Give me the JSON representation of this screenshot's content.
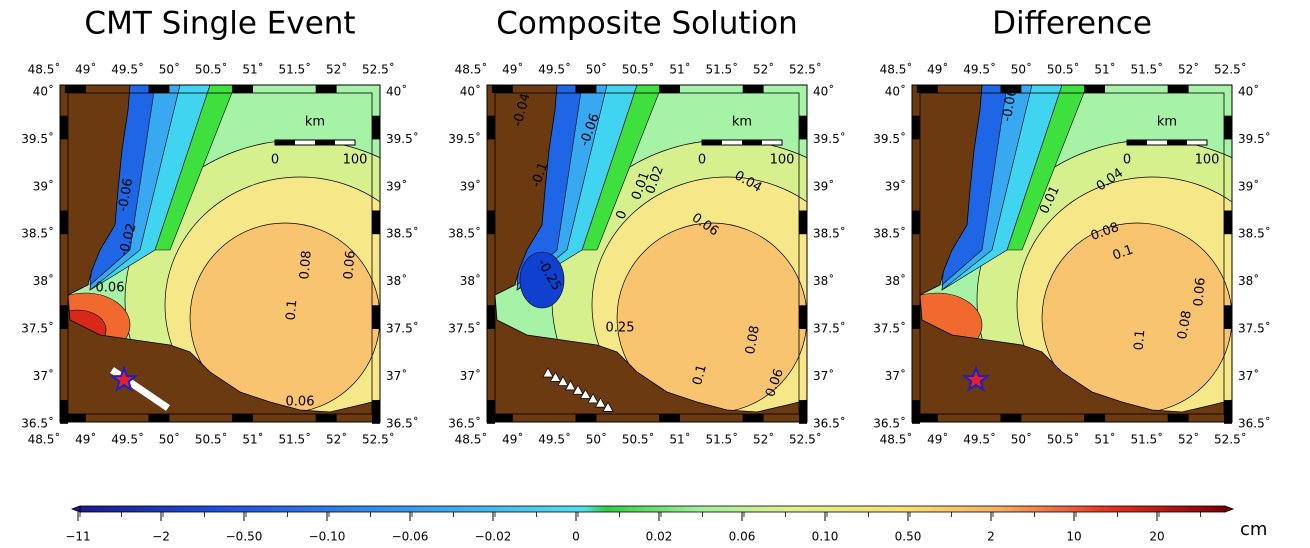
{
  "panels": [
    {
      "title": "CMT Single Event",
      "contour_labels": [
        "-0.06",
        "-0.02",
        "0.06",
        "0.1",
        "0.08",
        "0.06",
        "0.06"
      ]
    },
    {
      "title": "Composite Solution",
      "contour_labels": [
        "-0.04",
        "-0.06",
        "-0.1",
        "0.02",
        "0.01",
        "0",
        "-0.25",
        "0.25",
        "0.04",
        "0.06",
        "0.08",
        "0.1",
        "0.06"
      ]
    },
    {
      "title": "Difference",
      "contour_labels": [
        "-0.06",
        "0.01",
        "0.04",
        "0.08",
        "0.1",
        "0.06",
        "0.1",
        "0.08"
      ]
    }
  ],
  "lon_labels": [
    "48.5˚",
    "49˚",
    "49.5˚",
    "50˚",
    "50.5˚",
    "51˚",
    "51.5˚",
    "52˚",
    "52.5˚"
  ],
  "lat_labels": [
    "40˚",
    "39.5˚",
    "39˚",
    "38.5˚",
    "38˚",
    "37.5˚",
    "37˚",
    "36.5˚"
  ],
  "scale_bar": {
    "unit": "km",
    "start": "0",
    "end": "100"
  },
  "colorbar": {
    "labels": [
      "−11",
      "−2",
      "−0.50",
      "−0.10",
      "−0.06",
      "−0.02",
      "0",
      "0.02",
      "0.06",
      "0.10",
      "0.50",
      "2",
      "10",
      "20"
    ],
    "unit": "cm"
  }
}
